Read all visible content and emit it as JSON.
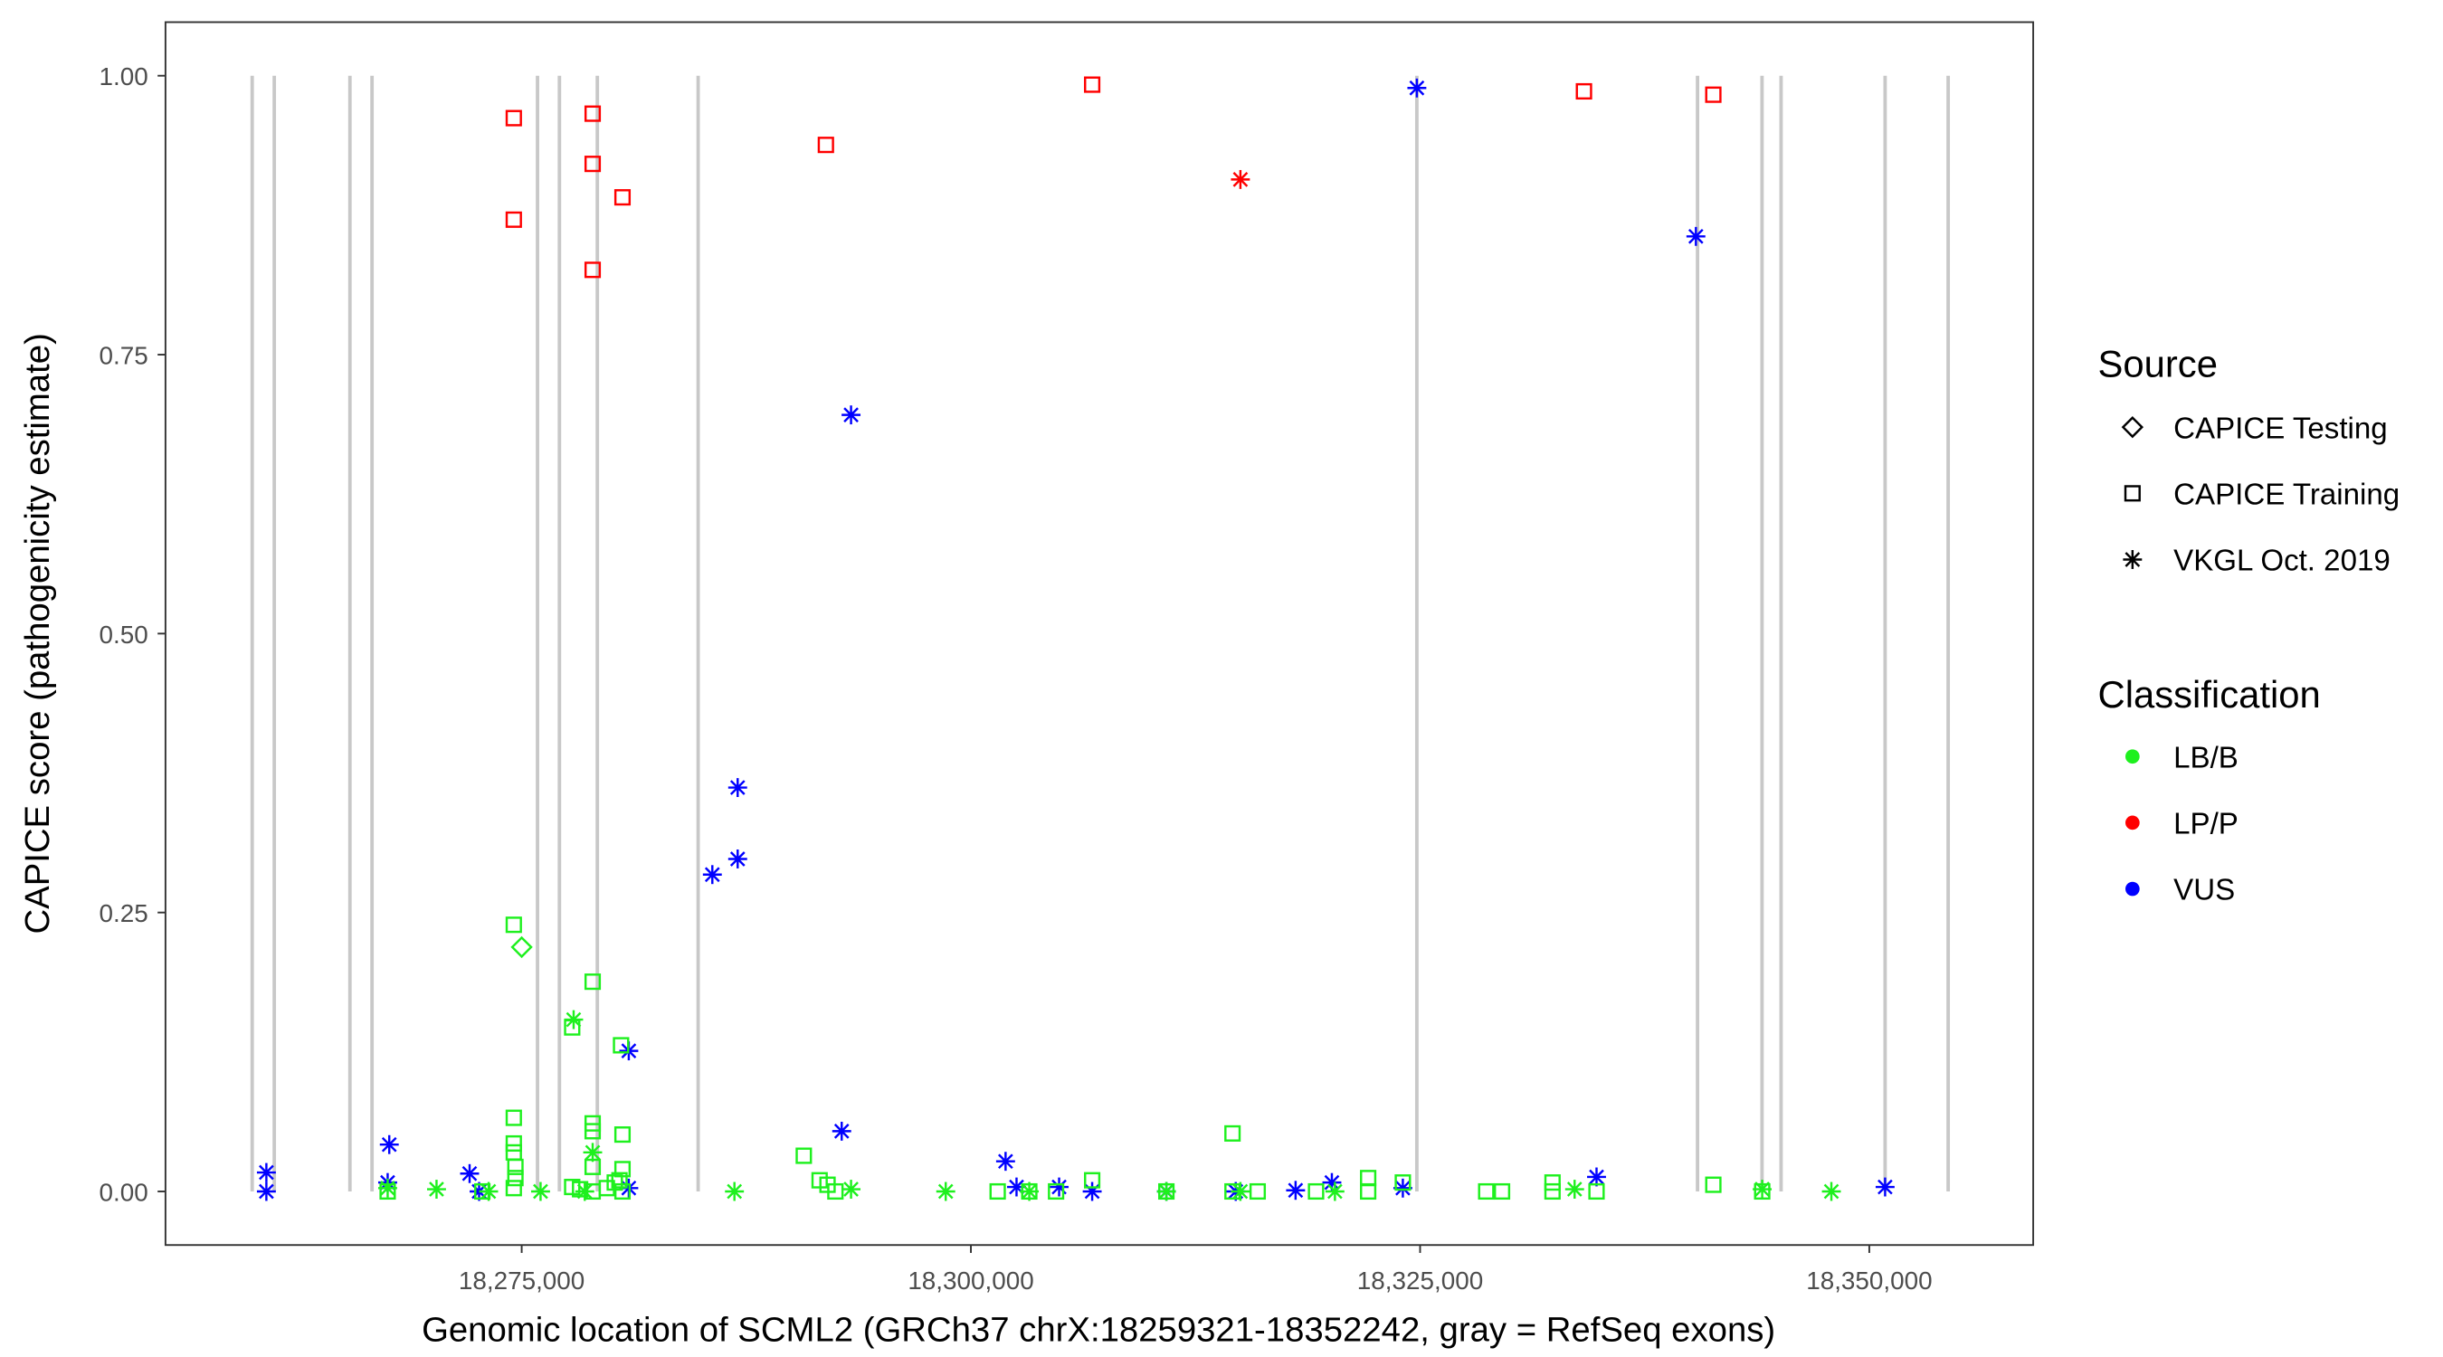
{
  "chart_data": {
    "type": "scatter",
    "xlabel": "Genomic location of SCML2 (GRCh37 chrX:18259321-18352242, gray = RefSeq exons)",
    "ylabel": "CAPICE score (pathogenicity estimate)",
    "xlim": [
      18254000,
      18358000
    ],
    "ylim": [
      -0.045,
      1.05
    ],
    "x_ticks": [
      {
        "value": 18275000,
        "label": "18,275,000"
      },
      {
        "value": 18300000,
        "label": "18,300,000"
      },
      {
        "value": 18325000,
        "label": "18,325,000"
      },
      {
        "value": 18350000,
        "label": "18,350,000"
      }
    ],
    "y_ticks": [
      {
        "value": 0,
        "label": "0.00"
      },
      {
        "value": 0.25,
        "label": "0.25"
      },
      {
        "value": 0.5,
        "label": "0.50"
      },
      {
        "value": 0.75,
        "label": "0.75"
      },
      {
        "value": 1,
        "label": "1.00"
      }
    ],
    "grid": false,
    "exons": [
      18260000,
      18261230,
      18265440,
      18266670,
      18275880,
      18277100,
      18279210,
      18284820,
      18324820,
      18340440,
      18344030,
      18345090,
      18350880,
      18354390
    ],
    "legend": {
      "placement": "right",
      "source_title": "Source",
      "source_items": [
        {
          "key": "testing",
          "label": "CAPICE Testing",
          "shape": "diamond"
        },
        {
          "key": "training",
          "label": "CAPICE Training",
          "shape": "square"
        },
        {
          "key": "vkgl",
          "label": "VKGL Oct. 2019",
          "shape": "asterisk"
        }
      ],
      "class_title": "Classification",
      "class_items": [
        {
          "key": "LB/B",
          "label": "LB/B",
          "color": "#1ef01e"
        },
        {
          "key": "LP/P",
          "label": "LP/P",
          "color": "#ff0000"
        },
        {
          "key": "VUS",
          "label": "VUS",
          "color": "#0000ff"
        }
      ]
    },
    "points": [
      [
        18274560,
        0.962,
        "training",
        "LP/P"
      ],
      [
        18274560,
        0.871,
        "training",
        "LP/P"
      ],
      [
        18278950,
        0.966,
        "training",
        "LP/P"
      ],
      [
        18278950,
        0.921,
        "training",
        "LP/P"
      ],
      [
        18278950,
        0.826,
        "training",
        "LP/P"
      ],
      [
        18280610,
        0.891,
        "training",
        "LP/P"
      ],
      [
        18291930,
        0.938,
        "training",
        "LP/P"
      ],
      [
        18306750,
        0.992,
        "training",
        "LP/P"
      ],
      [
        18334120,
        0.986,
        "training",
        "LP/P"
      ],
      [
        18341320,
        0.983,
        "training",
        "LP/P"
      ],
      [
        18315000,
        0.907,
        "vkgl",
        "LP/P"
      ],
      [
        18324820,
        0.989,
        "vkgl",
        "VUS"
      ],
      [
        18340350,
        0.856,
        "vkgl",
        "VUS"
      ],
      [
        18293330,
        0.696,
        "vkgl",
        "VUS"
      ],
      [
        18287020,
        0.362,
        "vkgl",
        "VUS"
      ],
      [
        18287020,
        0.298,
        "vkgl",
        "VUS"
      ],
      [
        18285610,
        0.284,
        "vkgl",
        "VUS"
      ],
      [
        18280960,
        0.126,
        "vkgl",
        "VUS"
      ],
      [
        18292810,
        0.054,
        "vkgl",
        "VUS"
      ],
      [
        18301930,
        0.027,
        "vkgl",
        "VUS"
      ],
      [
        18260790,
        0.017,
        "vkgl",
        "VUS"
      ],
      [
        18260790,
        0.0,
        "vkgl",
        "VUS"
      ],
      [
        18267630,
        0.042,
        "vkgl",
        "VUS"
      ],
      [
        18267540,
        0.008,
        "vkgl",
        "VUS"
      ],
      [
        18272100,
        0.016,
        "vkgl",
        "VUS"
      ],
      [
        18272630,
        0.0,
        "vkgl",
        "VUS"
      ],
      [
        18280960,
        0.003,
        "vkgl",
        "VUS"
      ],
      [
        18302540,
        0.004,
        "vkgl",
        "VUS"
      ],
      [
        18304910,
        0.004,
        "vkgl",
        "VUS"
      ],
      [
        18306750,
        0.0,
        "vkgl",
        "VUS"
      ],
      [
        18310880,
        0.0,
        "vkgl",
        "VUS"
      ],
      [
        18314740,
        0.0,
        "vkgl",
        "VUS"
      ],
      [
        18318070,
        0.001,
        "vkgl",
        "VUS"
      ],
      [
        18320090,
        0.008,
        "vkgl",
        "VUS"
      ],
      [
        18324040,
        0.003,
        "vkgl",
        "VUS"
      ],
      [
        18334820,
        0.013,
        "vkgl",
        "VUS"
      ],
      [
        18350880,
        0.004,
        "vkgl",
        "VUS"
      ],
      [
        18274560,
        0.239,
        "training",
        "LB/B"
      ],
      [
        18278950,
        0.188,
        "training",
        "LB/B"
      ],
      [
        18277810,
        0.147,
        "training",
        "LB/B"
      ],
      [
        18280530,
        0.131,
        "training",
        "LB/B"
      ],
      [
        18290700,
        0.032,
        "training",
        "LB/B"
      ],
      [
        18314560,
        0.052,
        "training",
        "LB/B"
      ],
      [
        18274560,
        0.066,
        "training",
        "LB/B"
      ],
      [
        18274560,
        0.043,
        "training",
        "LB/B"
      ],
      [
        18274560,
        0.035,
        "training",
        "LB/B"
      ],
      [
        18274650,
        0.022,
        "training",
        "LB/B"
      ],
      [
        18274650,
        0.012,
        "training",
        "LB/B"
      ],
      [
        18274560,
        0.003,
        "training",
        "LB/B"
      ],
      [
        18278950,
        0.061,
        "training",
        "LB/B"
      ],
      [
        18278950,
        0.054,
        "training",
        "LB/B"
      ],
      [
        18278950,
        0.022,
        "training",
        "LB/B"
      ],
      [
        18280610,
        0.051,
        "training",
        "LB/B"
      ],
      [
        18280610,
        0.02,
        "training",
        "LB/B"
      ],
      [
        18280440,
        0.01,
        "training",
        "LB/B"
      ],
      [
        18277810,
        0.004,
        "training",
        "LB/B"
      ],
      [
        18278250,
        0.002,
        "training",
        "LB/B"
      ],
      [
        18278950,
        0.0,
        "training",
        "LB/B"
      ],
      [
        18279740,
        0.003,
        "training",
        "LB/B"
      ],
      [
        18280180,
        0.008,
        "training",
        "LB/B"
      ],
      [
        18280610,
        0.0,
        "training",
        "LB/B"
      ],
      [
        18291580,
        0.01,
        "training",
        "LB/B"
      ],
      [
        18292020,
        0.006,
        "training",
        "LB/B"
      ],
      [
        18292460,
        0.0,
        "training",
        "LB/B"
      ],
      [
        18301490,
        0.0,
        "training",
        "LB/B"
      ],
      [
        18303250,
        0.0,
        "training",
        "LB/B"
      ],
      [
        18304740,
        0.0,
        "training",
        "LB/B"
      ],
      [
        18306750,
        0.01,
        "training",
        "LB/B"
      ],
      [
        18310880,
        0.0,
        "training",
        "LB/B"
      ],
      [
        18314560,
        0.0,
        "training",
        "LB/B"
      ],
      [
        18315960,
        0.0,
        "training",
        "LB/B"
      ],
      [
        18319210,
        0.0,
        "training",
        "LB/B"
      ],
      [
        18322110,
        0.012,
        "training",
        "LB/B"
      ],
      [
        18322110,
        0.0,
        "training",
        "LB/B"
      ],
      [
        18324040,
        0.008,
        "training",
        "LB/B"
      ],
      [
        18328680,
        0.0,
        "training",
        "LB/B"
      ],
      [
        18329560,
        0.0,
        "training",
        "LB/B"
      ],
      [
        18332370,
        0.008,
        "training",
        "LB/B"
      ],
      [
        18332370,
        0.0,
        "training",
        "LB/B"
      ],
      [
        18334820,
        0.0,
        "training",
        "LB/B"
      ],
      [
        18341320,
        0.006,
        "training",
        "LB/B"
      ],
      [
        18344040,
        0.0,
        "training",
        "LB/B"
      ],
      [
        18267540,
        0.0,
        "training",
        "LB/B"
      ],
      [
        18272810,
        0.0,
        "training",
        "LB/B"
      ],
      [
        18275000,
        0.219,
        "testing",
        "LB/B"
      ],
      [
        18277890,
        0.154,
        "vkgl",
        "LB/B"
      ],
      [
        18278950,
        0.035,
        "vkgl",
        "LB/B"
      ],
      [
        18267540,
        0.003,
        "vkgl",
        "LB/B"
      ],
      [
        18270260,
        0.002,
        "vkgl",
        "LB/B"
      ],
      [
        18273160,
        0.0,
        "vkgl",
        "LB/B"
      ],
      [
        18276050,
        0.0,
        "vkgl",
        "LB/B"
      ],
      [
        18278510,
        0.0,
        "vkgl",
        "LB/B"
      ],
      [
        18286840,
        0.0,
        "vkgl",
        "LB/B"
      ],
      [
        18293330,
        0.002,
        "vkgl",
        "LB/B"
      ],
      [
        18298600,
        0.0,
        "vkgl",
        "LB/B"
      ],
      [
        18303250,
        0.0,
        "vkgl",
        "LB/B"
      ],
      [
        18310880,
        0.0,
        "vkgl",
        "LB/B"
      ],
      [
        18315000,
        0.0,
        "vkgl",
        "LB/B"
      ],
      [
        18320260,
        0.0,
        "vkgl",
        "LB/B"
      ],
      [
        18333600,
        0.002,
        "vkgl",
        "LB/B"
      ],
      [
        18344040,
        0.002,
        "vkgl",
        "LB/B"
      ],
      [
        18347890,
        0.0,
        "vkgl",
        "LB/B"
      ]
    ]
  }
}
